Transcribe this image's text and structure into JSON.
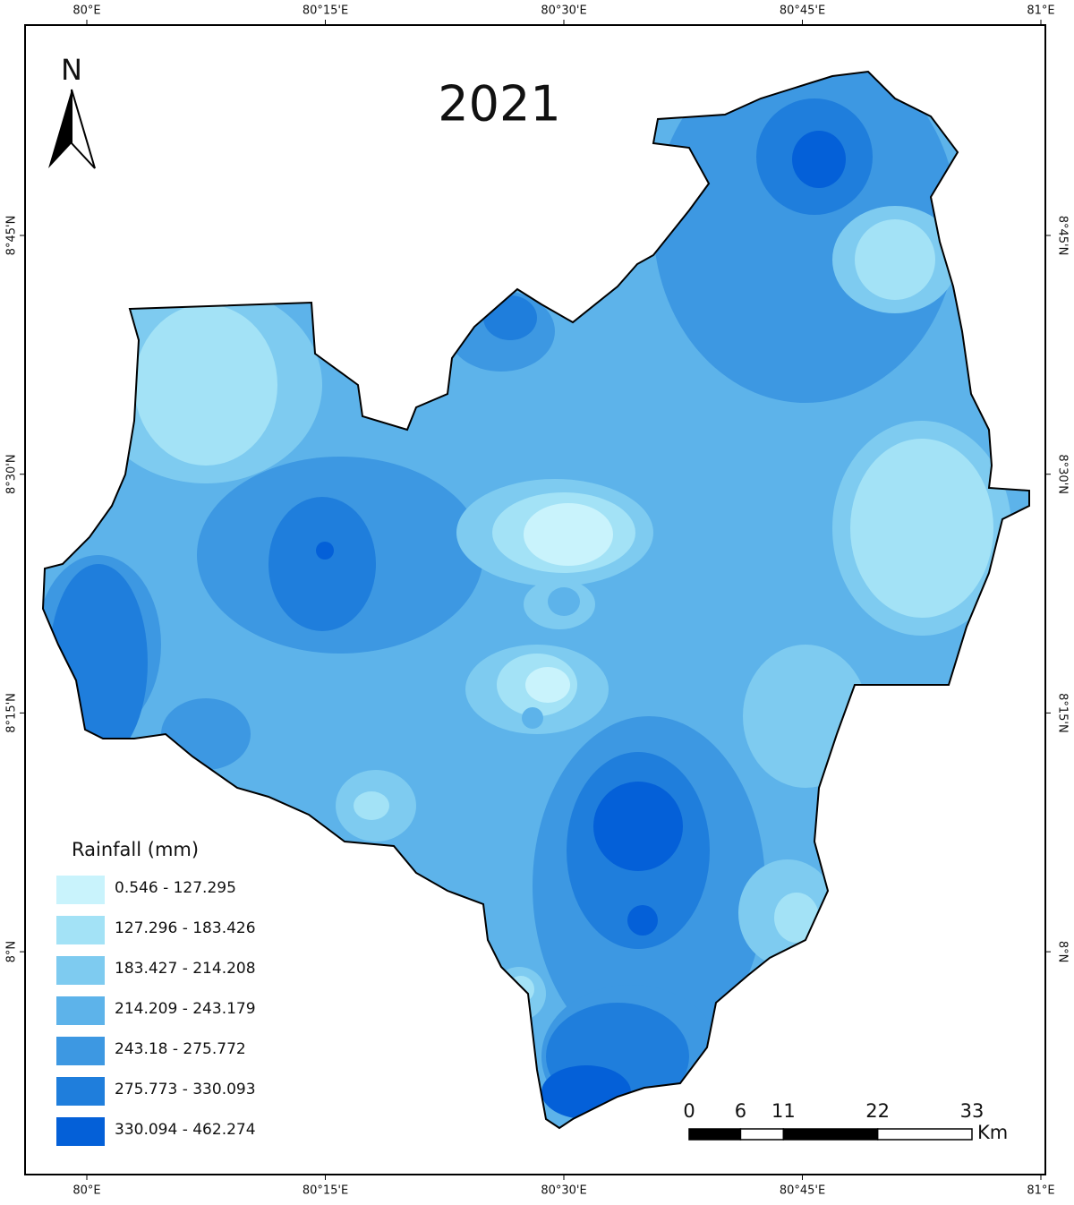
{
  "title": "2021",
  "north": "N",
  "longitude_labels": [
    "80°E",
    "80°15'E",
    "80°30'E",
    "80°45'E",
    "81°E"
  ],
  "latitude_labels": [
    "8°45'N",
    "8°30'N",
    "8°15'N",
    "8°N"
  ],
  "legend": {
    "title": "Rainfall (mm)",
    "items": [
      {
        "label": "0.546 - 127.295",
        "color": "#c9f3fc"
      },
      {
        "label": "127.296 - 183.426",
        "color": "#a3e2f6"
      },
      {
        "label": "183.427 - 214.208",
        "color": "#7ecbf0"
      },
      {
        "label": "214.209 - 243.179",
        "color": "#5db3ea"
      },
      {
        "label": "243.18 - 275.772",
        "color": "#3d98e2"
      },
      {
        "label": "275.773 - 330.093",
        "color": "#1f7edc"
      },
      {
        "label": "330.094 - 462.274",
        "color": "#0460d8"
      }
    ]
  },
  "scale_bar": {
    "ticks": [
      0,
      6,
      11,
      22,
      33
    ],
    "unit": "Km"
  }
}
